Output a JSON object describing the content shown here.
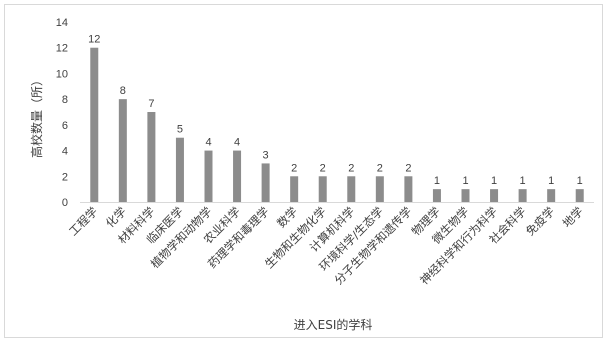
{
  "chart_data": {
    "type": "bar",
    "title": "",
    "xlabel": "进入ESI的学科",
    "ylabel": "高校数量（所）",
    "ylim": [
      0,
      14
    ],
    "yticks": [
      0,
      2,
      4,
      6,
      8,
      10,
      12,
      14
    ],
    "grid": false,
    "bar_color": "#8c8c8c",
    "categories": [
      "工程学",
      "化学",
      "材料科学",
      "临床医学",
      "植物学和动物学",
      "农业科学",
      "药理学和毒理学",
      "数学",
      "生物和生物化学",
      "计算机科学",
      "环境科学/生态学",
      "分子生物学和遗传学",
      "物理学",
      "微生物学",
      "神经科学和行为科学",
      "社会科学",
      "免疫学",
      "地学"
    ],
    "values": [
      12,
      8,
      7,
      5,
      4,
      4,
      3,
      2,
      2,
      2,
      2,
      2,
      1,
      1,
      1,
      1,
      1,
      1
    ]
  }
}
